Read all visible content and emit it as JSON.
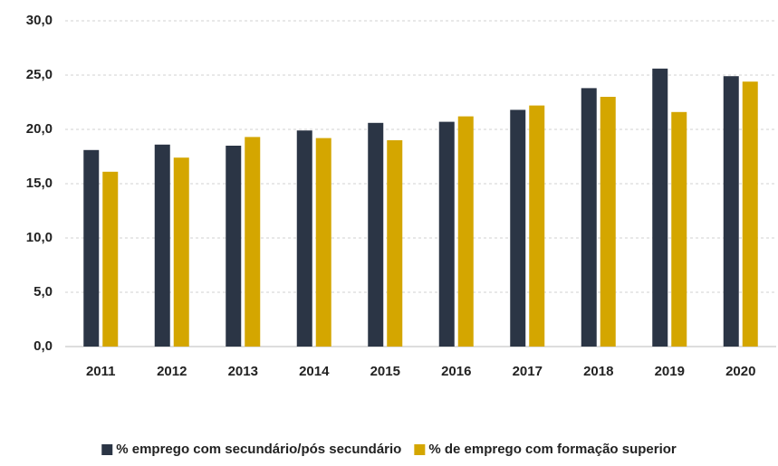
{
  "chart_data": {
    "type": "bar",
    "categories": [
      "2011",
      "2012",
      "2013",
      "2014",
      "2015",
      "2016",
      "2017",
      "2018",
      "2019",
      "2020"
    ],
    "series": [
      {
        "name": "% emprego com secundário/pós secundário",
        "color": "#2b3545",
        "values": [
          18.1,
          18.6,
          18.5,
          19.9,
          20.6,
          20.7,
          21.8,
          23.8,
          25.6,
          24.9
        ]
      },
      {
        "name": "% de emprego com formação superior",
        "color": "#d4a600",
        "values": [
          16.1,
          17.4,
          19.3,
          19.2,
          19.0,
          21.2,
          22.2,
          23.0,
          21.6,
          24.4
        ]
      }
    ],
    "ylim": [
      0,
      30
    ],
    "yticks": [
      {
        "value": 0,
        "label": "0,0"
      },
      {
        "value": 5,
        "label": "5,0"
      },
      {
        "value": 10,
        "label": "10,0"
      },
      {
        "value": 15,
        "label": "15,0"
      },
      {
        "value": 20,
        "label": "20,0"
      },
      {
        "value": 25,
        "label": "25,0"
      },
      {
        "value": 30,
        "label": "30,0"
      }
    ],
    "grid": true,
    "legend": "bottom"
  }
}
